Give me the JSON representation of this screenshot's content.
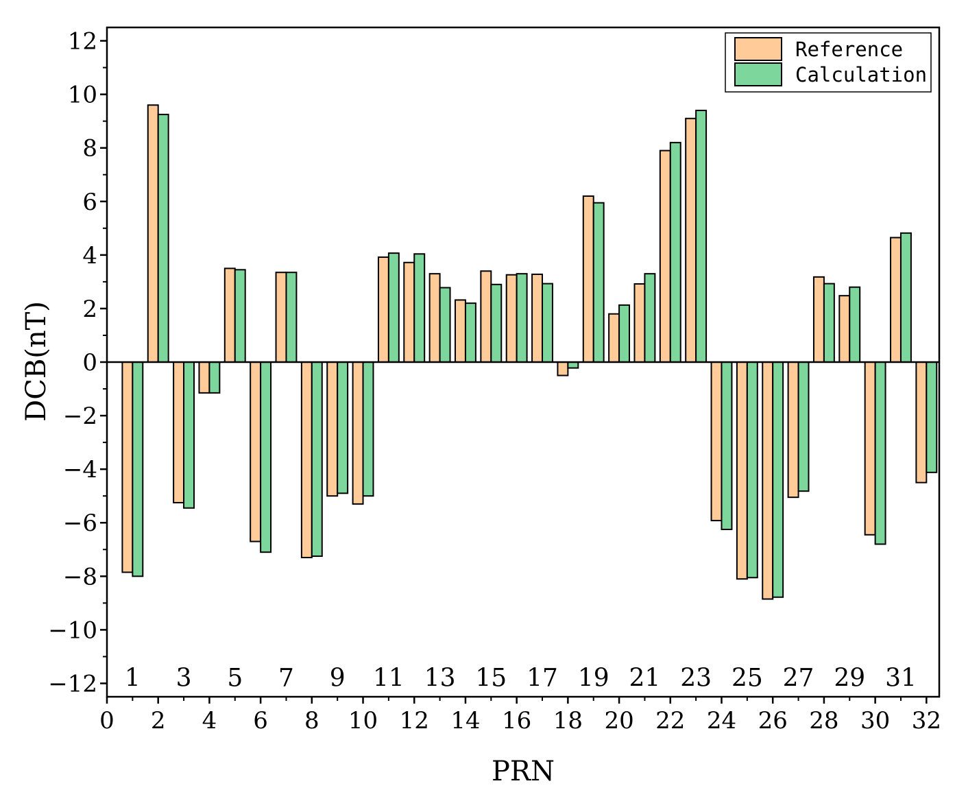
{
  "chart_data": {
    "type": "bar",
    "title": "",
    "xlabel": "PRN",
    "ylabel": "DCB(nT)",
    "xlim": [
      0,
      32.5
    ],
    "ylim": [
      -12.5,
      12.5
    ],
    "x_ticks": [
      0,
      2,
      4,
      6,
      8,
      10,
      12,
      14,
      16,
      18,
      20,
      22,
      24,
      26,
      28,
      30,
      32
    ],
    "y_ticks": [
      -12,
      -10,
      -8,
      -6,
      -4,
      -2,
      0,
      2,
      4,
      6,
      8,
      10,
      12
    ],
    "y_tick_labels": [
      "−12",
      "−10",
      "−8",
      "−6",
      "−4",
      "−2",
      "0",
      "2",
      "4",
      "6",
      "8",
      "10",
      "12"
    ],
    "inner_labels": [
      "1",
      "3",
      "5",
      "7",
      "9",
      "11",
      "13",
      "15",
      "17",
      "19",
      "21",
      "23",
      "25",
      "27",
      "29",
      "31"
    ],
    "inner_label_positions": [
      1,
      3,
      5,
      7,
      9,
      11,
      13,
      15,
      17,
      19,
      21,
      23,
      25,
      27,
      29,
      31
    ],
    "legend_position": "top-right",
    "categories": [
      1,
      2,
      3,
      4,
      5,
      6,
      7,
      8,
      9,
      10,
      11,
      12,
      13,
      14,
      15,
      16,
      17,
      18,
      19,
      20,
      21,
      22,
      23,
      24,
      25,
      26,
      27,
      28,
      29,
      30,
      31,
      32
    ],
    "series": [
      {
        "name": "Reference",
        "color": "#ffcc99",
        "values": [
          -7.85,
          9.6,
          -5.25,
          -1.15,
          3.5,
          -6.7,
          3.35,
          -7.3,
          -5.0,
          -5.3,
          3.92,
          3.72,
          3.3,
          2.32,
          3.4,
          3.26,
          3.28,
          -0.5,
          6.2,
          1.8,
          2.92,
          7.9,
          9.1,
          -5.92,
          -8.1,
          -8.85,
          -5.05,
          3.18,
          2.48,
          -6.45,
          4.65,
          -4.5
        ]
      },
      {
        "name": "Calculation",
        "color": "#7dd69b",
        "values": [
          -8.0,
          9.25,
          -5.45,
          -1.15,
          3.45,
          -7.1,
          3.35,
          -7.25,
          -4.9,
          -5.0,
          4.07,
          4.04,
          2.78,
          2.2,
          2.9,
          3.3,
          2.93,
          -0.22,
          5.95,
          2.13,
          3.3,
          8.2,
          9.4,
          -6.25,
          -8.05,
          -8.78,
          -4.82,
          2.93,
          2.8,
          -6.8,
          4.82,
          -4.12
        ]
      }
    ]
  }
}
